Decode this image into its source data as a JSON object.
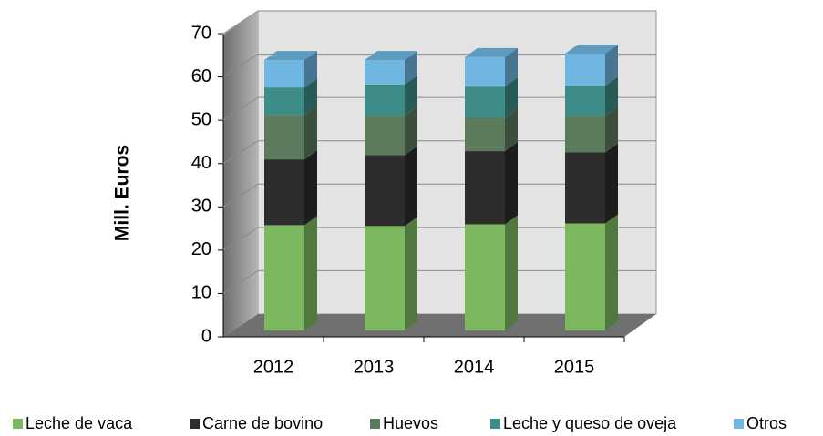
{
  "chart_data": {
    "type": "bar",
    "stacked": true,
    "y_label": "Mill. Euros",
    "categories": [
      "2012",
      "2013",
      "2014",
      "2015"
    ],
    "series": [
      {
        "name": "Leche de vaca",
        "color": "#7cb85f",
        "values": [
          24.3,
          24.1,
          24.5,
          24.7
        ]
      },
      {
        "name": "Carne de bovino",
        "color": "#2d2d2d",
        "values": [
          15.2,
          16.4,
          16.9,
          16.4
        ]
      },
      {
        "name": "Huevos",
        "color": "#5c7a5c",
        "values": [
          10.3,
          9.1,
          7.8,
          8.5
        ]
      },
      {
        "name": "Leche y queso de oveja",
        "color": "#3d8c88",
        "values": [
          6.3,
          7.2,
          7.1,
          6.9
        ]
      },
      {
        "name": "Otros",
        "color": "#6fb6e0",
        "values": [
          6.3,
          5.6,
          6.8,
          7.4
        ]
      }
    ],
    "ylim": [
      0,
      70
    ],
    "yticks": [
      0,
      10,
      20,
      30,
      40,
      50,
      60,
      70
    ],
    "grid": true,
    "legend": "bottom"
  }
}
